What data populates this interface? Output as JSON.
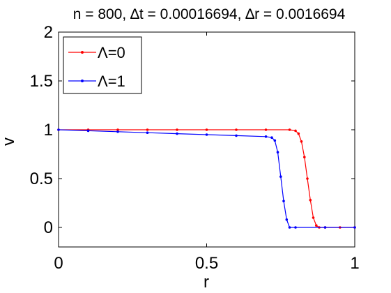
{
  "chart_data": {
    "type": "line",
    "title": "n = 800, ∆t = 0.00016694, ∆r = 0.0016694",
    "xlabel": "r",
    "ylabel": "v",
    "xlim": [
      0,
      1
    ],
    "ylim": [
      -0.2,
      2
    ],
    "xticks": [
      0,
      0.5,
      1
    ],
    "xtick_labels": [
      "0",
      "0.5",
      "1"
    ],
    "yticks": [
      0,
      0.5,
      1,
      1.5,
      2
    ],
    "ytick_labels": [
      "0",
      "0.5",
      "1",
      "1.5",
      "2"
    ],
    "grid": false,
    "legend_position": "top-left",
    "series": [
      {
        "name": "Λ=0",
        "color": "#ff0000",
        "x": [
          0,
          0.1,
          0.2,
          0.3,
          0.4,
          0.5,
          0.6,
          0.7,
          0.78,
          0.8,
          0.81,
          0.82,
          0.83,
          0.84,
          0.85,
          0.86,
          0.87,
          0.88,
          0.9,
          0.95,
          1.0
        ],
        "y": [
          1.0,
          1.0,
          1.0,
          1.0,
          1.0,
          1.0,
          1.0,
          1.0,
          1.0,
          0.99,
          0.96,
          0.88,
          0.72,
          0.5,
          0.28,
          0.1,
          0.02,
          0.0,
          0.0,
          0.0,
          0.0
        ]
      },
      {
        "name": "Λ=1",
        "color": "#0000ff",
        "x": [
          0,
          0.1,
          0.2,
          0.3,
          0.4,
          0.5,
          0.6,
          0.7,
          0.72,
          0.73,
          0.74,
          0.75,
          0.76,
          0.77,
          0.78,
          0.8,
          0.9,
          1.0
        ],
        "y": [
          1.0,
          0.99,
          0.98,
          0.97,
          0.96,
          0.95,
          0.94,
          0.93,
          0.92,
          0.89,
          0.77,
          0.52,
          0.27,
          0.08,
          0.0,
          0.0,
          0.0,
          0.0
        ]
      }
    ]
  }
}
